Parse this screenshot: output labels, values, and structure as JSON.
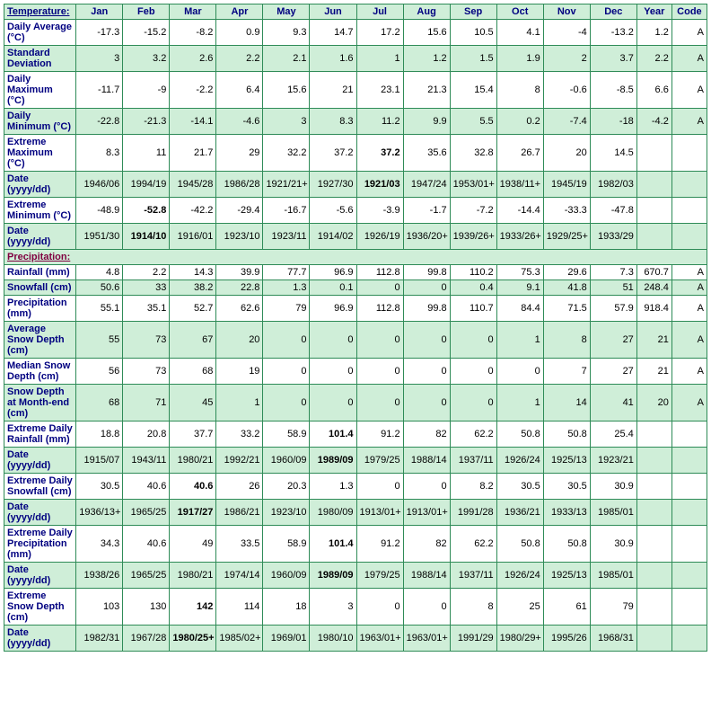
{
  "columns": [
    "Jan",
    "Feb",
    "Mar",
    "Apr",
    "May",
    "Jun",
    "Jul",
    "Aug",
    "Sep",
    "Oct",
    "Nov",
    "Dec",
    "Year",
    "Code"
  ],
  "sections": [
    {
      "title": "Temperature:",
      "link": true,
      "rows": [
        {
          "label": "Daily Average (°C)",
          "alt": false,
          "cells": [
            "-17.3",
            "-15.2",
            "-8.2",
            "0.9",
            "9.3",
            "14.7",
            "17.2",
            "15.6",
            "10.5",
            "4.1",
            "-4",
            "-13.2",
            "1.2",
            "A"
          ]
        },
        {
          "label": "Standard Deviation",
          "alt": true,
          "cells": [
            "3",
            "3.2",
            "2.6",
            "2.2",
            "2.1",
            "1.6",
            "1",
            "1.2",
            "1.5",
            "1.9",
            "2",
            "3.7",
            "2.2",
            "A"
          ]
        },
        {
          "label": "Daily Maximum (°C)",
          "alt": false,
          "cells": [
            "-11.7",
            "-9",
            "-2.2",
            "6.4",
            "15.6",
            "21",
            "23.1",
            "21.3",
            "15.4",
            "8",
            "-0.6",
            "-8.5",
            "6.6",
            "A"
          ]
        },
        {
          "label": "Daily Minimum (°C)",
          "alt": true,
          "cells": [
            "-22.8",
            "-21.3",
            "-14.1",
            "-4.6",
            "3",
            "8.3",
            "11.2",
            "9.9",
            "5.5",
            "0.2",
            "-7.4",
            "-18",
            "-4.2",
            "A"
          ]
        },
        {
          "label": "Extreme Maximum (°C)",
          "alt": false,
          "cells": [
            "8.3",
            "11",
            "21.7",
            "29",
            "32.2",
            "37.2",
            "37.2",
            "35.6",
            "32.8",
            "26.7",
            "20",
            "14.5",
            "",
            ""
          ],
          "bold": [
            6
          ]
        },
        {
          "label": "Date (yyyy/dd)",
          "alt": true,
          "cells": [
            "1946/06",
            "1994/19",
            "1945/28",
            "1986/28",
            "1921/21+",
            "1927/30",
            "1921/03",
            "1947/24",
            "1953/01+",
            "1938/11+",
            "1945/19",
            "1982/03",
            "",
            ""
          ],
          "bold": [
            6
          ]
        },
        {
          "label": "Extreme Minimum (°C)",
          "alt": false,
          "cells": [
            "-48.9",
            "-52.8",
            "-42.2",
            "-29.4",
            "-16.7",
            "-5.6",
            "-3.9",
            "-1.7",
            "-7.2",
            "-14.4",
            "-33.3",
            "-47.8",
            "",
            ""
          ],
          "bold": [
            1
          ]
        },
        {
          "label": "Date (yyyy/dd)",
          "alt": true,
          "cells": [
            "1951/30",
            "1914/10",
            "1916/01",
            "1923/10",
            "1923/11",
            "1914/02",
            "1926/19",
            "1936/20+",
            "1939/26+",
            "1933/26+",
            "1929/25+",
            "1933/29",
            "",
            ""
          ],
          "bold": [
            1
          ]
        }
      ]
    },
    {
      "title": "Precipitation:",
      "link": true,
      "rows": [
        {
          "label": "Rainfall (mm)",
          "alt": false,
          "cells": [
            "4.8",
            "2.2",
            "14.3",
            "39.9",
            "77.7",
            "96.9",
            "112.8",
            "99.8",
            "110.2",
            "75.3",
            "29.6",
            "7.3",
            "670.7",
            "A"
          ]
        },
        {
          "label": "Snowfall (cm)",
          "alt": true,
          "cells": [
            "50.6",
            "33",
            "38.2",
            "22.8",
            "1.3",
            "0.1",
            "0",
            "0",
            "0.4",
            "9.1",
            "41.8",
            "51",
            "248.4",
            "A"
          ]
        },
        {
          "label": "Precipitation (mm)",
          "alt": false,
          "cells": [
            "55.1",
            "35.1",
            "52.7",
            "62.6",
            "79",
            "96.9",
            "112.8",
            "99.8",
            "110.7",
            "84.4",
            "71.5",
            "57.9",
            "918.4",
            "A"
          ]
        },
        {
          "label": "Average Snow Depth (cm)",
          "alt": true,
          "cells": [
            "55",
            "73",
            "67",
            "20",
            "0",
            "0",
            "0",
            "0",
            "0",
            "1",
            "8",
            "27",
            "21",
            "A"
          ]
        },
        {
          "label": "Median Snow Depth (cm)",
          "alt": false,
          "cells": [
            "56",
            "73",
            "68",
            "19",
            "0",
            "0",
            "0",
            "0",
            "0",
            "0",
            "7",
            "27",
            "21",
            "A"
          ]
        },
        {
          "label": "Snow Depth at Month-end (cm)",
          "alt": true,
          "cells": [
            "68",
            "71",
            "45",
            "1",
            "0",
            "0",
            "0",
            "0",
            "0",
            "1",
            "14",
            "41",
            "20",
            "A"
          ]
        },
        {
          "label": "Extreme Daily Rainfall (mm)",
          "alt": false,
          "cells": [
            "18.8",
            "20.8",
            "37.7",
            "33.2",
            "58.9",
            "101.4",
            "91.2",
            "82",
            "62.2",
            "50.8",
            "50.8",
            "25.4",
            "",
            ""
          ],
          "bold": [
            5
          ]
        },
        {
          "label": "Date (yyyy/dd)",
          "alt": true,
          "cells": [
            "1915/07",
            "1943/11",
            "1980/21",
            "1992/21",
            "1960/09",
            "1989/09",
            "1979/25",
            "1988/14",
            "1937/11",
            "1926/24",
            "1925/13",
            "1923/21",
            "",
            ""
          ],
          "bold": [
            5
          ]
        },
        {
          "label": "Extreme Daily Snowfall (cm)",
          "alt": false,
          "cells": [
            "30.5",
            "40.6",
            "40.6",
            "26",
            "20.3",
            "1.3",
            "0",
            "0",
            "8.2",
            "30.5",
            "30.5",
            "30.9",
            "",
            ""
          ],
          "bold": [
            2
          ]
        },
        {
          "label": "Date (yyyy/dd)",
          "alt": true,
          "cells": [
            "1936/13+",
            "1965/25",
            "1917/27",
            "1986/21",
            "1923/10",
            "1980/09",
            "1913/01+",
            "1913/01+",
            "1991/28",
            "1936/21",
            "1933/13",
            "1985/01",
            "",
            ""
          ],
          "bold": [
            2
          ]
        },
        {
          "label": "Extreme Daily Precipitation (mm)",
          "alt": false,
          "cells": [
            "34.3",
            "40.6",
            "49",
            "33.5",
            "58.9",
            "101.4",
            "91.2",
            "82",
            "62.2",
            "50.8",
            "50.8",
            "30.9",
            "",
            ""
          ],
          "bold": [
            5
          ]
        },
        {
          "label": "Date (yyyy/dd)",
          "alt": true,
          "cells": [
            "1938/26",
            "1965/25",
            "1980/21",
            "1974/14",
            "1960/09",
            "1989/09",
            "1979/25",
            "1988/14",
            "1937/11",
            "1926/24",
            "1925/13",
            "1985/01",
            "",
            ""
          ],
          "bold": [
            5
          ]
        },
        {
          "label": "Extreme Snow Depth (cm)",
          "alt": false,
          "cells": [
            "103",
            "130",
            "142",
            "114",
            "18",
            "3",
            "0",
            "0",
            "8",
            "25",
            "61",
            "79",
            "",
            ""
          ],
          "bold": [
            2
          ]
        },
        {
          "label": "Date (yyyy/dd)",
          "alt": true,
          "cells": [
            "1982/31",
            "1967/28",
            "1980/25+",
            "1985/02+",
            "1969/01",
            "1980/10",
            "1963/01+",
            "1963/01+",
            "1991/29",
            "1980/29+",
            "1995/26",
            "1968/31",
            "",
            ""
          ],
          "bold": [
            2
          ]
        }
      ]
    }
  ]
}
